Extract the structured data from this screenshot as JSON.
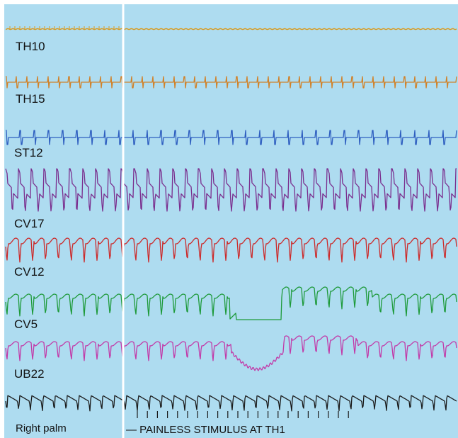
{
  "chart_data": {
    "type": "line",
    "grid": false,
    "legend": "none",
    "background_color": "#aedcf0",
    "marker_line_color": "#ffffff",
    "annotation": "— PAINLESS STIMULUS AT TH1",
    "stimulus_tick_count": 22,
    "series": [
      {
        "name": "TH10",
        "color": "#d89a1e",
        "pattern": "flat",
        "pulses": 0
      },
      {
        "name": "TH15",
        "color": "#d0822a",
        "pattern": "spikes",
        "pulses": 43
      },
      {
        "name": "ST12",
        "color": "#2f5fc0",
        "pattern": "spikes",
        "pulses": 32
      },
      {
        "name": "CV17",
        "color": "#7a2e8e",
        "pattern": "large-oscillation",
        "pulses": 35
      },
      {
        "name": "CV12",
        "color": "#cc2a2a",
        "pattern": "oscillation",
        "pulses": 35
      },
      {
        "name": "CV5",
        "color": "#1e9a3a",
        "pattern": "oscillation-with-suppression",
        "pulses": 35
      },
      {
        "name": "UB22",
        "color": "#c23aa8",
        "pattern": "oscillation-with-dip",
        "pulses": 35
      },
      {
        "name": "Right palm",
        "color": "#1a1a1a",
        "pattern": "sawtooth",
        "pulses": 38
      }
    ]
  }
}
